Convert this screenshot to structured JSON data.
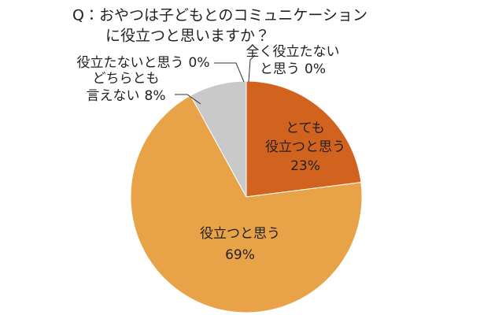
{
  "chart_data": {
    "type": "pie",
    "title": [
      "Q：おやつは子どもとのコミュニケーション",
      "に役立つと思いますか？"
    ],
    "categories": [
      [
        "とても",
        "役立つと思う"
      ],
      [
        "役立つと思う"
      ],
      [
        "どちらとも",
        "言えない"
      ],
      [
        "役立たないと思う"
      ],
      [
        "全く役立たない",
        "と思う"
      ]
    ],
    "values": [
      23,
      69,
      8,
      0,
      0
    ],
    "value_labels": [
      "23%",
      "69%",
      "8%",
      "0%",
      "0%"
    ],
    "colors": [
      "#d2631f",
      "#e8a348",
      "#c9c9c9",
      "#e0e0e0",
      "#f0f0f0"
    ]
  }
}
